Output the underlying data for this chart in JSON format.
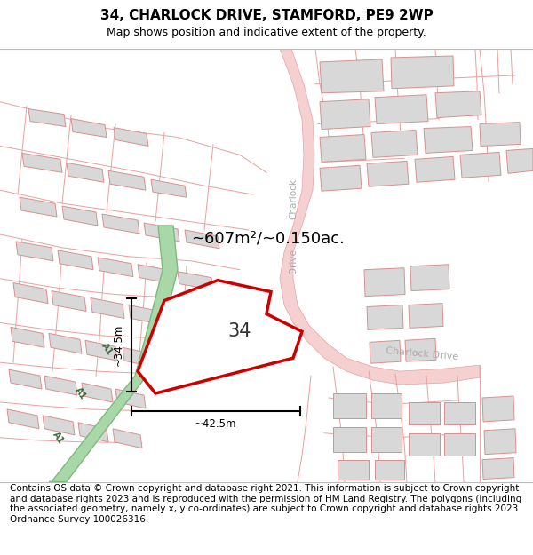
{
  "title": "34, CHARLOCK DRIVE, STAMFORD, PE9 2WP",
  "subtitle": "Map shows position and indicative extent of the property.",
  "footer": "Contains OS data © Crown copyright and database right 2021. This information is subject to Crown copyright and database rights 2023 and is reproduced with the permission of HM Land Registry. The polygons (including the associated geometry, namely x, y co-ordinates) are subject to Crown copyright and database rights 2023 Ordnance Survey 100026316.",
  "map_bg": "#f5f5f5",
  "road_color": "#e8a0a0",
  "road_fill": "#f5d0d0",
  "building_fill": "#d8d8d8",
  "building_stroke": "#d89090",
  "green_road_fill": "#a8d8a8",
  "green_road_stroke": "#80b880",
  "highlight_color": "#cc0000",
  "dim_text": "~607m²/~0.150ac.",
  "width_text": "~42.5m",
  "height_text": "~34.5m",
  "number_text": "34",
  "title_fontsize": 11,
  "subtitle_fontsize": 9,
  "footer_fontsize": 7.5
}
